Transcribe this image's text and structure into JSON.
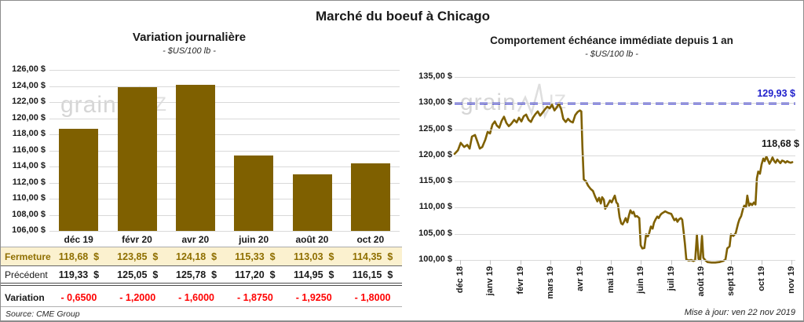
{
  "page": {
    "title": "Marché du boeuf à Chicago",
    "source": "Source: CME Group",
    "updated": "Mise à jour: ven 22 nov 2019",
    "watermark": {
      "part1": "grain",
      "zigzag_icon": "price-line-zigzag",
      "part2": "IZ"
    }
  },
  "colors": {
    "gold": "#7F6000",
    "reference_blue": "#2121CC",
    "variation_red": "#FF0000",
    "close_row_bg": "#FBF1CF",
    "close_row_text": "#8F6F00",
    "gridline": "#D9D9D9",
    "watermark_gray": "#D8D8D8"
  },
  "table": {
    "columns": [
      "déc 19",
      "févr 20",
      "avr 20",
      "juin 20",
      "août 20",
      "oct 20"
    ],
    "rows": [
      {
        "label": "Fermeture",
        "values": [
          "118,68  $",
          "123,85  $",
          "124,18  $",
          "115,33  $",
          "113,03  $",
          "114,35  $"
        ]
      },
      {
        "label": "Précédent",
        "values": [
          "119,33  $",
          "125,05  $",
          "125,78  $",
          "117,20  $",
          "114,95  $",
          "116,15  $"
        ]
      },
      {
        "label": "Variation",
        "values": [
          "- 0,6500",
          "- 1,2000",
          "- 1,6000",
          "- 1,8750",
          "- 1,9250",
          "- 1,8000"
        ]
      }
    ]
  },
  "chart_data": [
    {
      "type": "bar",
      "title": "Variation journalière",
      "subtitle": "- $US/100 lb -",
      "categories": [
        "déc 19",
        "févr 20",
        "avr 20",
        "juin 20",
        "août 20",
        "oct 20"
      ],
      "values": [
        118.68,
        123.85,
        124.18,
        115.33,
        113.03,
        114.35
      ],
      "ylim": [
        106,
        126
      ],
      "ytick_step": 2,
      "ytick_labels": [
        "126,00 $",
        "124,00 $",
        "122,00 $",
        "120,00 $",
        "118,00 $",
        "116,00 $",
        "114,00 $",
        "112,00 $",
        "110,00 $",
        "108,00 $",
        "106,00 $"
      ],
      "grid": true,
      "bar_color": "#7F6000"
    },
    {
      "type": "line",
      "title": "Comportement échéance immédiate depuis 1 an",
      "subtitle": "- $US/100 lb -",
      "x_labels": [
        "déc 18",
        "janv 19",
        "févr 19",
        "mars 19",
        "avr 19",
        "mai 19",
        "juin 19",
        "juil 19",
        "août 19",
        "sept 19",
        "oct 19",
        "nov 19"
      ],
      "ylim": [
        100,
        135
      ],
      "ytick_step": 5,
      "ytick_labels": [
        "135,00 $",
        "130,00 $",
        "125,00 $",
        "120,00 $",
        "115,00 $",
        "110,00 $",
        "105,00 $",
        "100,00 $"
      ],
      "grid": true,
      "line_color": "#7F6000",
      "reference_line": {
        "value": 129.93,
        "label": "129,93 $",
        "color": "#2121CC",
        "style": "dashed"
      },
      "last_value_label": "118,68 $",
      "points": [
        [
          0.0,
          120.3
        ],
        [
          0.01,
          121.0
        ],
        [
          0.018,
          122.4
        ],
        [
          0.028,
          121.6
        ],
        [
          0.037,
          122.0
        ],
        [
          0.044,
          121.3
        ],
        [
          0.051,
          123.6
        ],
        [
          0.06,
          123.9
        ],
        [
          0.067,
          122.6
        ],
        [
          0.074,
          121.3
        ],
        [
          0.081,
          121.6
        ],
        [
          0.09,
          123.0
        ],
        [
          0.097,
          124.5
        ],
        [
          0.104,
          124.2
        ],
        [
          0.111,
          125.9
        ],
        [
          0.118,
          126.5
        ],
        [
          0.124,
          125.7
        ],
        [
          0.131,
          125.3
        ],
        [
          0.138,
          126.6
        ],
        [
          0.145,
          127.4
        ],
        [
          0.152,
          126.2
        ],
        [
          0.159,
          125.6
        ],
        [
          0.166,
          126.0
        ],
        [
          0.175,
          126.8
        ],
        [
          0.182,
          126.3
        ],
        [
          0.189,
          127.2
        ],
        [
          0.196,
          126.5
        ],
        [
          0.203,
          127.5
        ],
        [
          0.21,
          127.8
        ],
        [
          0.217,
          126.8
        ],
        [
          0.224,
          126.4
        ],
        [
          0.23,
          127.2
        ],
        [
          0.237,
          127.9
        ],
        [
          0.244,
          128.4
        ],
        [
          0.251,
          127.6
        ],
        [
          0.258,
          128.2
        ],
        [
          0.265,
          128.8
        ],
        [
          0.272,
          129.3
        ],
        [
          0.279,
          129.0
        ],
        [
          0.286,
          129.7
        ],
        [
          0.293,
          128.6
        ],
        [
          0.3,
          129.2
        ],
        [
          0.306,
          129.9
        ],
        [
          0.313,
          128.8
        ],
        [
          0.319,
          127.0
        ],
        [
          0.326,
          126.4
        ],
        [
          0.333,
          127.0
        ],
        [
          0.34,
          126.5
        ],
        [
          0.347,
          126.3
        ],
        [
          0.354,
          127.7
        ],
        [
          0.361,
          128.3
        ],
        [
          0.368,
          128.6
        ],
        [
          0.372,
          128.4
        ],
        [
          0.375,
          121.5
        ],
        [
          0.379,
          115.4
        ],
        [
          0.385,
          115.1
        ],
        [
          0.392,
          114.2
        ],
        [
          0.399,
          113.6
        ],
        [
          0.406,
          113.2
        ],
        [
          0.412,
          112.2
        ],
        [
          0.419,
          111.2
        ],
        [
          0.424,
          111.9
        ],
        [
          0.429,
          110.8
        ],
        [
          0.433,
          112.0
        ],
        [
          0.438,
          111.5
        ],
        [
          0.442,
          109.8
        ],
        [
          0.447,
          110.3
        ],
        [
          0.452,
          110.9
        ],
        [
          0.456,
          111.4
        ],
        [
          0.461,
          111.0
        ],
        [
          0.465,
          111.6
        ],
        [
          0.47,
          112.3
        ],
        [
          0.475,
          111.0
        ],
        [
          0.479,
          110.7
        ],
        [
          0.484,
          108.2
        ],
        [
          0.489,
          107.0
        ],
        [
          0.493,
          106.8
        ],
        [
          0.498,
          107.4
        ],
        [
          0.502,
          108.0
        ],
        [
          0.507,
          107.2
        ],
        [
          0.512,
          108.6
        ],
        [
          0.516,
          109.5
        ],
        [
          0.521,
          108.9
        ],
        [
          0.525,
          109.2
        ],
        [
          0.53,
          108.3
        ],
        [
          0.535,
          108.4
        ],
        [
          0.542,
          108.0
        ],
        [
          0.546,
          102.8
        ],
        [
          0.551,
          102.2
        ],
        [
          0.557,
          102.3
        ],
        [
          0.562,
          104.9
        ],
        [
          0.567,
          104.5
        ],
        [
          0.571,
          105.1
        ],
        [
          0.576,
          106.4
        ],
        [
          0.581,
          106.0
        ],
        [
          0.585,
          107.1
        ],
        [
          0.59,
          107.8
        ],
        [
          0.595,
          108.3
        ],
        [
          0.599,
          108.0
        ],
        [
          0.604,
          108.6
        ],
        [
          0.608,
          108.9
        ],
        [
          0.618,
          109.3
        ],
        [
          0.627,
          109.0
        ],
        [
          0.636,
          108.8
        ],
        [
          0.641,
          108.1
        ],
        [
          0.645,
          107.6
        ],
        [
          0.65,
          107.9
        ],
        [
          0.654,
          107.3
        ],
        [
          0.659,
          107.8
        ],
        [
          0.664,
          108.0
        ],
        [
          0.668,
          107.7
        ],
        [
          0.672,
          105.5
        ],
        [
          0.676,
          103.0
        ],
        [
          0.68,
          100.1
        ],
        [
          0.687,
          99.9
        ],
        [
          0.694,
          100.0
        ],
        [
          0.701,
          99.8
        ],
        [
          0.706,
          100.0
        ],
        [
          0.711,
          104.8
        ],
        [
          0.716,
          100.2
        ],
        [
          0.721,
          100.0
        ],
        [
          0.726,
          104.6
        ],
        [
          0.73,
          100.4
        ],
        [
          0.735,
          100.0
        ],
        [
          0.742,
          99.6
        ],
        [
          0.754,
          99.5
        ],
        [
          0.765,
          99.5
        ],
        [
          0.777,
          99.6
        ],
        [
          0.788,
          99.8
        ],
        [
          0.795,
          100.1
        ],
        [
          0.8,
          102.2
        ],
        [
          0.807,
          102.6
        ],
        [
          0.811,
          104.9
        ],
        [
          0.818,
          104.6
        ],
        [
          0.825,
          105.1
        ],
        [
          0.832,
          107.0
        ],
        [
          0.836,
          107.8
        ],
        [
          0.841,
          108.4
        ],
        [
          0.846,
          109.7
        ],
        [
          0.85,
          110.4
        ],
        [
          0.855,
          110.1
        ],
        [
          0.859,
          112.3
        ],
        [
          0.864,
          110.4
        ],
        [
          0.869,
          110.8
        ],
        [
          0.873,
          110.5
        ],
        [
          0.878,
          111.0
        ],
        [
          0.883,
          110.6
        ],
        [
          0.887,
          115.6
        ],
        [
          0.891,
          116.9
        ],
        [
          0.896,
          116.5
        ],
        [
          0.901,
          118.3
        ],
        [
          0.906,
          119.4
        ],
        [
          0.91,
          118.9
        ],
        [
          0.915,
          119.8
        ],
        [
          0.919,
          119.2
        ],
        [
          0.924,
          118.4
        ],
        [
          0.929,
          119.0
        ],
        [
          0.933,
          119.6
        ],
        [
          0.938,
          118.9
        ],
        [
          0.942,
          118.6
        ],
        [
          0.947,
          119.2
        ],
        [
          0.952,
          118.8
        ],
        [
          0.956,
          118.5
        ],
        [
          0.961,
          119.0
        ],
        [
          0.966,
          118.9
        ],
        [
          0.971,
          118.6
        ],
        [
          0.976,
          118.9
        ],
        [
          0.981,
          118.7
        ],
        [
          0.986,
          118.6
        ],
        [
          0.991,
          118.7
        ]
      ]
    }
  ]
}
